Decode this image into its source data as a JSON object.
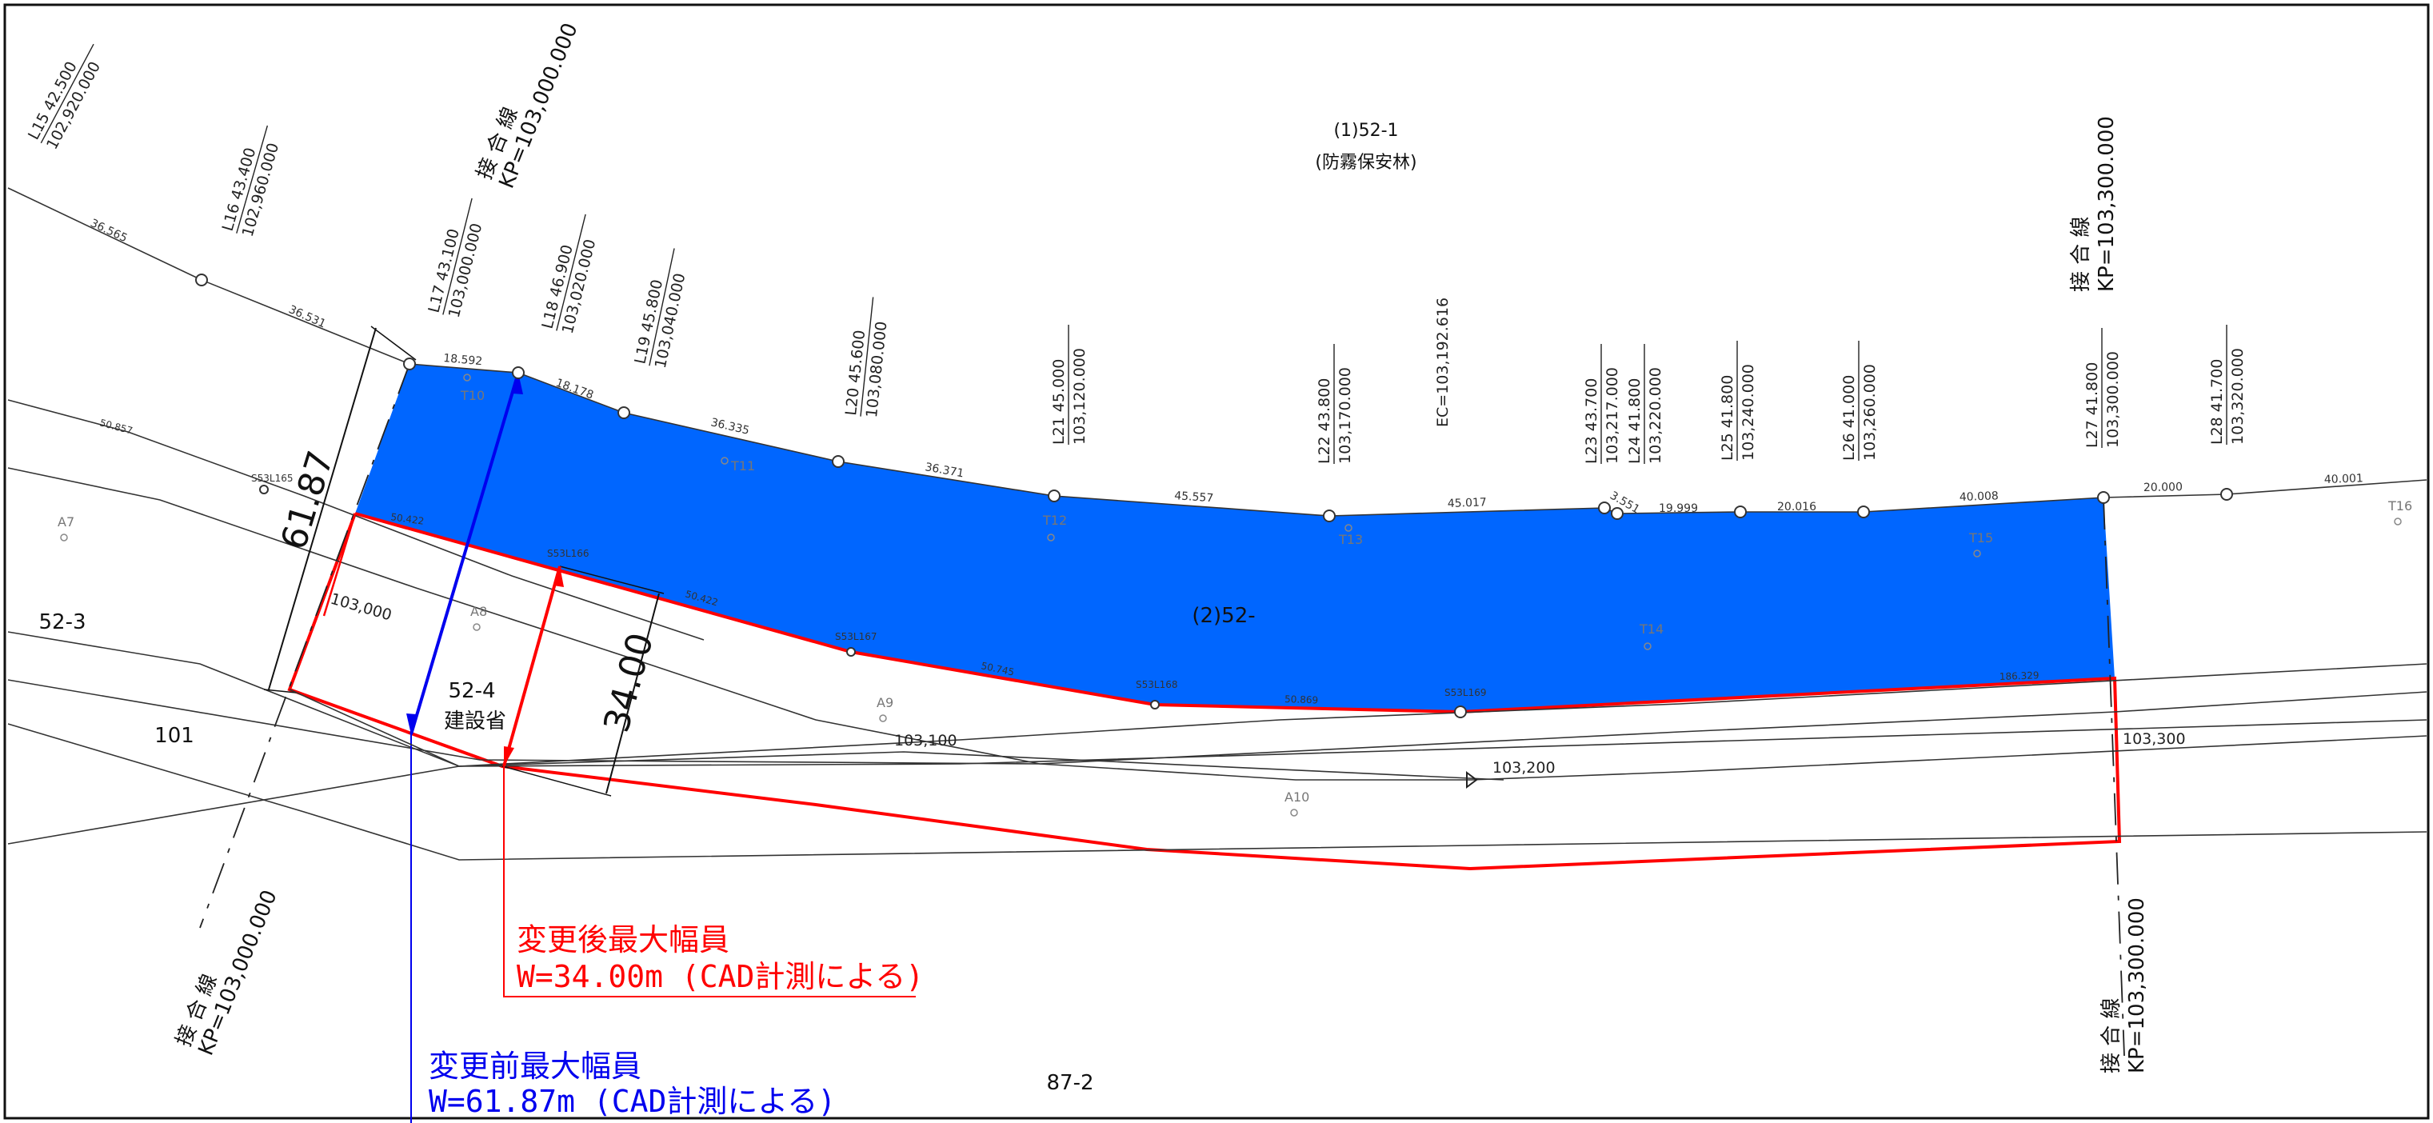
{
  "parcels": {
    "upper": "(1)52-1",
    "upper_note": "(防霧保安林)",
    "area": "(2)52-",
    "parcel_52_4": "52-4",
    "parcel_52_4_owner": "建設省",
    "parcel_52_3": "52-3",
    "parcel_101": "101",
    "parcel_87_2": "87-2"
  },
  "joint_lines": {
    "label": "接 合 線",
    "left_kp": "KP=103,000.000",
    "right_kp": "KP=103,300.000"
  },
  "stations": [
    {
      "id": "L15",
      "width": "42.500",
      "kp": "102,920.000"
    },
    {
      "id": "L16",
      "width": "43.400",
      "kp": "102,960.000"
    },
    {
      "id": "L17",
      "width": "43.100",
      "kp": "103,000.000"
    },
    {
      "id": "L18",
      "width": "46.900",
      "kp": "103,020.000"
    },
    {
      "id": "L19",
      "width": "45.800",
      "kp": "103,040.000"
    },
    {
      "id": "L20",
      "width": "45.600",
      "kp": "103,080.000"
    },
    {
      "id": "L21",
      "width": "45.000",
      "kp": "103,120.000"
    },
    {
      "id": "L22",
      "width": "43.800",
      "kp": "103,170.000"
    },
    {
      "id": "L23",
      "width": "43.700",
      "kp": "103,217.000"
    },
    {
      "id": "L24",
      "width": "41.800",
      "kp": "103,220.000"
    },
    {
      "id": "L25",
      "width": "41.800",
      "kp": "103,240.000"
    },
    {
      "id": "L26",
      "width": "41.000",
      "kp": "103,260.000"
    },
    {
      "id": "L27",
      "width": "41.800",
      "kp": "103,300.000"
    },
    {
      "id": "L28",
      "width": "41.700",
      "kp": "103,320.000"
    }
  ],
  "ec_label": "EC=103,192.616",
  "segment_lengths": {
    "top": [
      "36.565",
      "36.531",
      "18.592",
      "18.178",
      "36.335",
      "36.371",
      "45.557",
      "45.017",
      "3.551",
      "19.999",
      "20.016",
      "40.008",
      "20.000",
      "40.001"
    ],
    "lower": [
      "50.857",
      "50.422",
      "50.422",
      "50.745",
      "50.869",
      "186.329"
    ]
  },
  "boundary_points": [
    "S53L165",
    "S53L166",
    "S53L167",
    "S53L168",
    "S53L169"
  ],
  "survey_points": [
    "T10",
    "T11",
    "T12",
    "T13",
    "T14",
    "T15",
    "T16",
    "A7",
    "A8",
    "A9",
    "A10"
  ],
  "road_chainage": [
    "103,000",
    "103,100",
    "103,200",
    "103,300"
  ],
  "dimensions": {
    "before": "61.87",
    "after": "34.00"
  },
  "notes": {
    "after_title": "変更後最大幅員",
    "after_value": "W=34.00m (CAD計測による)",
    "before_title": "変更前最大幅員",
    "before_value": "W=61.87m (CAD計測による)"
  },
  "colors": {
    "area_fill": "#0066ff",
    "after_line": "#ff0000",
    "before_line": "#0000ee"
  }
}
